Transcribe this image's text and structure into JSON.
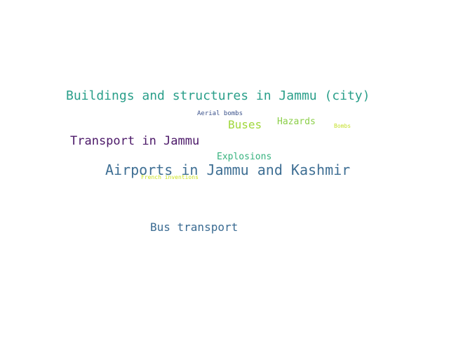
{
  "words": [
    {
      "text": "Buildings and structures in Jammu (city)",
      "color": "#2a9f8a"
    },
    {
      "text": "Aerial bombs",
      "color": "#3b528b"
    },
    {
      "text": "Buses",
      "color": "#a0d83c"
    },
    {
      "text": "Hazards",
      "color": "#8ccf4a"
    },
    {
      "text": "Bombs",
      "color": "#c5e02c"
    },
    {
      "text": "Transport in Jammu",
      "color": "#4b1868"
    },
    {
      "text": "Explosions",
      "color": "#36b27e"
    },
    {
      "text": "Airports in Jammu and Kashmir",
      "color": "#3f6f94"
    },
    {
      "text": "French inventions",
      "color": "#cbe11e"
    },
    {
      "text": "Bus transport",
      "color": "#3a6b92"
    }
  ]
}
